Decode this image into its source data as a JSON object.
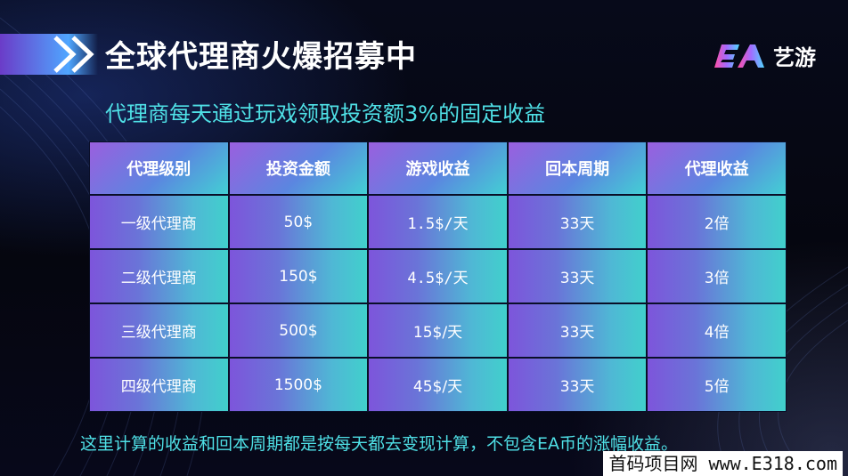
{
  "header": {
    "title": "全球代理商火爆招募中",
    "brand_name": "艺游",
    "brand_logo": "EA"
  },
  "subtitle": "代理商每天通过玩戏领取投资额3%的固定收益",
  "table": {
    "headers": [
      "代理级别",
      "投资金额",
      "游戏收益",
      "回本周期",
      "代理收益"
    ],
    "rows": [
      [
        "一级代理商",
        "50$",
        "1.5$/天",
        "33天",
        "2倍"
      ],
      [
        "二级代理商",
        "150$",
        "4.5$/天",
        "33天",
        "3倍"
      ],
      [
        "三级代理商",
        "500$",
        "15$/天",
        "33天",
        "4倍"
      ],
      [
        "四级代理商",
        "1500$",
        "45$/天",
        "33天",
        "5倍"
      ]
    ]
  },
  "footnote": "这里计算的收益和回本周期都是按每天都去变现计算，不包含EA币的涨幅收益。",
  "watermark": "首码项目网 www.E318.com",
  "colors": {
    "accent_cyan": "#4fe0e6",
    "accent_purple": "#7d55db",
    "background": "#05060f"
  }
}
